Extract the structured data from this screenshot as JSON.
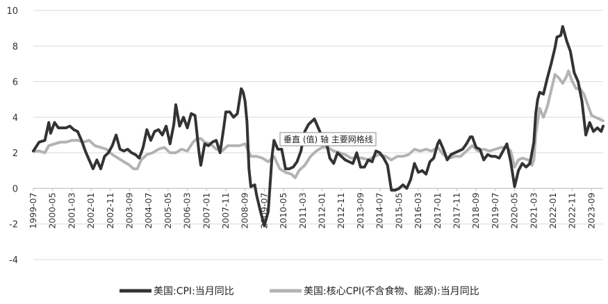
{
  "chart_data": {
    "type": "line",
    "title": "",
    "xlabel": "",
    "ylabel": "",
    "ylim": [
      -4,
      10
    ],
    "yticks": [
      -4,
      -2,
      0,
      2,
      4,
      6,
      8,
      10
    ],
    "grid": "horizontal",
    "legend_position": "bottom",
    "x_tick_labels": [
      "1999-07",
      "2000-05",
      "2001-03",
      "2002-01",
      "2002-11",
      "2003-09",
      "2004-07",
      "2005-05",
      "2006-03",
      "2007-01",
      "2007-11",
      "2008-09",
      "2009-07",
      "2010-05",
      "2011-03",
      "2012-01",
      "2012-11",
      "2013-09",
      "2014-07",
      "2015-05",
      "2016-03",
      "2017-01",
      "2017-11",
      "2018-09",
      "2019-07",
      "2020-05",
      "2021-03",
      "2022-01",
      "2022-11",
      "2023-09"
    ],
    "x_start": "1999-07",
    "x_end": "2024-03",
    "series": [
      {
        "name": "美国:CPI:当月同比",
        "color": "#333333",
        "points": [
          [
            "1999-07",
            2.1
          ],
          [
            "1999-10",
            2.6
          ],
          [
            "2000-01",
            2.7
          ],
          [
            "2000-03",
            3.7
          ],
          [
            "2000-04",
            3.1
          ],
          [
            "2000-06",
            3.7
          ],
          [
            "2000-08",
            3.4
          ],
          [
            "2000-12",
            3.4
          ],
          [
            "2001-02",
            3.5
          ],
          [
            "2001-04",
            3.3
          ],
          [
            "2001-06",
            3.2
          ],
          [
            "2001-08",
            2.7
          ],
          [
            "2001-10",
            2.1
          ],
          [
            "2001-12",
            1.6
          ],
          [
            "2002-02",
            1.1
          ],
          [
            "2002-04",
            1.6
          ],
          [
            "2002-06",
            1.1
          ],
          [
            "2002-08",
            1.8
          ],
          [
            "2002-10",
            2.0
          ],
          [
            "2002-12",
            2.4
          ],
          [
            "2003-02",
            3.0
          ],
          [
            "2003-04",
            2.2
          ],
          [
            "2003-06",
            2.1
          ],
          [
            "2003-08",
            2.2
          ],
          [
            "2003-10",
            2.0
          ],
          [
            "2003-12",
            1.9
          ],
          [
            "2004-02",
            1.7
          ],
          [
            "2004-04",
            2.3
          ],
          [
            "2004-06",
            3.3
          ],
          [
            "2004-08",
            2.7
          ],
          [
            "2004-10",
            3.2
          ],
          [
            "2004-12",
            3.3
          ],
          [
            "2005-02",
            3.0
          ],
          [
            "2005-04",
            3.5
          ],
          [
            "2005-06",
            2.5
          ],
          [
            "2005-08",
            3.6
          ],
          [
            "2005-09",
            4.7
          ],
          [
            "2005-11",
            3.5
          ],
          [
            "2006-01",
            4.0
          ],
          [
            "2006-03",
            3.4
          ],
          [
            "2006-05",
            4.2
          ],
          [
            "2006-07",
            4.1
          ],
          [
            "2006-09",
            2.1
          ],
          [
            "2006-10",
            1.3
          ],
          [
            "2006-12",
            2.5
          ],
          [
            "2007-02",
            2.4
          ],
          [
            "2007-04",
            2.6
          ],
          [
            "2007-06",
            2.7
          ],
          [
            "2007-08",
            2.0
          ],
          [
            "2007-10",
            3.5
          ],
          [
            "2007-11",
            4.3
          ],
          [
            "2008-01",
            4.3
          ],
          [
            "2008-03",
            4.0
          ],
          [
            "2008-05",
            4.2
          ],
          [
            "2008-07",
            5.6
          ],
          [
            "2008-08",
            5.4
          ],
          [
            "2008-09",
            4.9
          ],
          [
            "2008-10",
            3.7
          ],
          [
            "2008-11",
            1.1
          ],
          [
            "2008-12",
            0.1
          ],
          [
            "2009-02",
            0.2
          ],
          [
            "2009-03",
            -0.4
          ],
          [
            "2009-05",
            -1.3
          ],
          [
            "2009-07",
            -2.1
          ],
          [
            "2009-09",
            -1.3
          ],
          [
            "2009-11",
            1.8
          ],
          [
            "2009-12",
            2.7
          ],
          [
            "2010-02",
            2.2
          ],
          [
            "2010-04",
            2.2
          ],
          [
            "2010-06",
            1.1
          ],
          [
            "2010-08",
            1.1
          ],
          [
            "2010-10",
            1.2
          ],
          [
            "2010-12",
            1.5
          ],
          [
            "2011-02",
            2.1
          ],
          [
            "2011-04",
            3.2
          ],
          [
            "2011-06",
            3.6
          ],
          [
            "2011-08",
            3.8
          ],
          [
            "2011-09",
            3.9
          ],
          [
            "2011-11",
            3.4
          ],
          [
            "2012-01",
            2.9
          ],
          [
            "2012-03",
            2.7
          ],
          [
            "2012-05",
            1.7
          ],
          [
            "2012-07",
            1.4
          ],
          [
            "2012-09",
            2.0
          ],
          [
            "2012-11",
            1.8
          ],
          [
            "2013-01",
            1.6
          ],
          [
            "2013-03",
            1.5
          ],
          [
            "2013-05",
            1.4
          ],
          [
            "2013-07",
            2.0
          ],
          [
            "2013-09",
            1.2
          ],
          [
            "2013-11",
            1.2
          ],
          [
            "2014-01",
            1.6
          ],
          [
            "2014-03",
            1.5
          ],
          [
            "2014-05",
            2.1
          ],
          [
            "2014-07",
            2.0
          ],
          [
            "2014-09",
            1.7
          ],
          [
            "2014-11",
            1.3
          ],
          [
            "2015-01",
            -0.1
          ],
          [
            "2015-03",
            -0.1
          ],
          [
            "2015-05",
            0.0
          ],
          [
            "2015-07",
            0.2
          ],
          [
            "2015-09",
            0.0
          ],
          [
            "2015-11",
            0.5
          ],
          [
            "2016-01",
            1.4
          ],
          [
            "2016-03",
            0.9
          ],
          [
            "2016-05",
            1.0
          ],
          [
            "2016-07",
            0.8
          ],
          [
            "2016-09",
            1.5
          ],
          [
            "2016-11",
            1.7
          ],
          [
            "2017-01",
            2.5
          ],
          [
            "2017-02",
            2.7
          ],
          [
            "2017-04",
            2.2
          ],
          [
            "2017-06",
            1.6
          ],
          [
            "2017-08",
            1.9
          ],
          [
            "2017-10",
            2.0
          ],
          [
            "2017-12",
            2.1
          ],
          [
            "2018-02",
            2.2
          ],
          [
            "2018-04",
            2.5
          ],
          [
            "2018-06",
            2.9
          ],
          [
            "2018-07",
            2.9
          ],
          [
            "2018-09",
            2.3
          ],
          [
            "2018-11",
            2.2
          ],
          [
            "2019-01",
            1.6
          ],
          [
            "2019-03",
            1.9
          ],
          [
            "2019-05",
            1.8
          ],
          [
            "2019-07",
            1.8
          ],
          [
            "2019-09",
            1.7
          ],
          [
            "2019-11",
            2.1
          ],
          [
            "2020-01",
            2.5
          ],
          [
            "2020-03",
            1.5
          ],
          [
            "2020-05",
            0.1
          ],
          [
            "2020-07",
            1.0
          ],
          [
            "2020-09",
            1.4
          ],
          [
            "2020-11",
            1.2
          ],
          [
            "2021-01",
            1.4
          ],
          [
            "2021-03",
            2.6
          ],
          [
            "2021-04",
            4.2
          ],
          [
            "2021-05",
            5.0
          ],
          [
            "2021-06",
            5.4
          ],
          [
            "2021-08",
            5.3
          ],
          [
            "2021-10",
            6.2
          ],
          [
            "2021-12",
            7.0
          ],
          [
            "2022-02",
            7.9
          ],
          [
            "2022-03",
            8.5
          ],
          [
            "2022-05",
            8.6
          ],
          [
            "2022-06",
            9.1
          ],
          [
            "2022-08",
            8.3
          ],
          [
            "2022-10",
            7.7
          ],
          [
            "2022-12",
            6.5
          ],
          [
            "2023-02",
            6.0
          ],
          [
            "2023-04",
            4.9
          ],
          [
            "2023-06",
            3.0
          ],
          [
            "2023-08",
            3.7
          ],
          [
            "2023-10",
            3.2
          ],
          [
            "2023-12",
            3.4
          ],
          [
            "2024-02",
            3.2
          ],
          [
            "2024-03",
            3.5
          ]
        ]
      },
      {
        "name": "美国:核心CPI(不含食物、能源):当月同比",
        "color": "#b3b3b3",
        "points": [
          [
            "1999-07",
            2.1
          ],
          [
            "1999-10",
            2.1
          ],
          [
            "2000-01",
            2.0
          ],
          [
            "2000-03",
            2.4
          ],
          [
            "2000-06",
            2.5
          ],
          [
            "2000-09",
            2.6
          ],
          [
            "2000-12",
            2.6
          ],
          [
            "2001-03",
            2.7
          ],
          [
            "2001-06",
            2.7
          ],
          [
            "2001-09",
            2.6
          ],
          [
            "2001-12",
            2.7
          ],
          [
            "2002-03",
            2.4
          ],
          [
            "2002-06",
            2.3
          ],
          [
            "2002-09",
            2.2
          ],
          [
            "2002-12",
            1.9
          ],
          [
            "2003-03",
            1.7
          ],
          [
            "2003-06",
            1.5
          ],
          [
            "2003-09",
            1.3
          ],
          [
            "2003-11",
            1.1
          ],
          [
            "2004-01",
            1.1
          ],
          [
            "2004-03",
            1.6
          ],
          [
            "2004-06",
            1.9
          ],
          [
            "2004-09",
            2.0
          ],
          [
            "2004-12",
            2.2
          ],
          [
            "2005-03",
            2.3
          ],
          [
            "2005-06",
            2.0
          ],
          [
            "2005-09",
            2.0
          ],
          [
            "2005-12",
            2.2
          ],
          [
            "2006-03",
            2.1
          ],
          [
            "2006-06",
            2.6
          ],
          [
            "2006-08",
            2.8
          ],
          [
            "2006-10",
            2.8
          ],
          [
            "2006-12",
            2.6
          ],
          [
            "2007-03",
            2.5
          ],
          [
            "2007-06",
            2.2
          ],
          [
            "2007-09",
            2.1
          ],
          [
            "2007-12",
            2.4
          ],
          [
            "2008-03",
            2.4
          ],
          [
            "2008-06",
            2.4
          ],
          [
            "2008-09",
            2.5
          ],
          [
            "2008-12",
            1.8
          ],
          [
            "2009-03",
            1.8
          ],
          [
            "2009-06",
            1.7
          ],
          [
            "2009-09",
            1.5
          ],
          [
            "2009-12",
            1.8
          ],
          [
            "2010-03",
            1.1
          ],
          [
            "2010-06",
            0.9
          ],
          [
            "2010-09",
            0.8
          ],
          [
            "2010-11",
            0.6
          ],
          [
            "2011-01",
            1.0
          ],
          [
            "2011-04",
            1.3
          ],
          [
            "2011-07",
            1.8
          ],
          [
            "2011-10",
            2.1
          ],
          [
            "2012-01",
            2.3
          ],
          [
            "2012-04",
            2.3
          ],
          [
            "2012-07",
            2.1
          ],
          [
            "2012-10",
            2.0
          ],
          [
            "2013-01",
            1.9
          ],
          [
            "2013-04",
            1.7
          ],
          [
            "2013-07",
            1.7
          ],
          [
            "2013-10",
            1.7
          ],
          [
            "2014-01",
            1.6
          ],
          [
            "2014-04",
            1.8
          ],
          [
            "2014-07",
            1.9
          ],
          [
            "2014-10",
            1.8
          ],
          [
            "2015-01",
            1.6
          ],
          [
            "2015-04",
            1.8
          ],
          [
            "2015-07",
            1.8
          ],
          [
            "2015-10",
            1.9
          ],
          [
            "2016-01",
            2.2
          ],
          [
            "2016-04",
            2.1
          ],
          [
            "2016-07",
            2.2
          ],
          [
            "2016-10",
            2.1
          ],
          [
            "2017-01",
            2.3
          ],
          [
            "2017-04",
            1.9
          ],
          [
            "2017-07",
            1.7
          ],
          [
            "2017-10",
            1.8
          ],
          [
            "2018-01",
            1.8
          ],
          [
            "2018-04",
            2.1
          ],
          [
            "2018-07",
            2.4
          ],
          [
            "2018-10",
            2.1
          ],
          [
            "2019-01",
            2.2
          ],
          [
            "2019-04",
            2.1
          ],
          [
            "2019-07",
            2.2
          ],
          [
            "2019-10",
            2.3
          ],
          [
            "2020-01",
            2.3
          ],
          [
            "2020-03",
            2.1
          ],
          [
            "2020-05",
            1.2
          ],
          [
            "2020-07",
            1.6
          ],
          [
            "2020-09",
            1.7
          ],
          [
            "2020-12",
            1.6
          ],
          [
            "2021-02",
            1.3
          ],
          [
            "2021-03",
            1.6
          ],
          [
            "2021-04",
            3.0
          ],
          [
            "2021-06",
            4.5
          ],
          [
            "2021-08",
            4.0
          ],
          [
            "2021-10",
            4.6
          ],
          [
            "2021-12",
            5.5
          ],
          [
            "2022-02",
            6.4
          ],
          [
            "2022-04",
            6.2
          ],
          [
            "2022-06",
            5.9
          ],
          [
            "2022-08",
            6.3
          ],
          [
            "2022-09",
            6.6
          ],
          [
            "2022-11",
            6.0
          ],
          [
            "2023-01",
            5.6
          ],
          [
            "2023-03",
            5.6
          ],
          [
            "2023-05",
            5.3
          ],
          [
            "2023-07",
            4.7
          ],
          [
            "2023-09",
            4.1
          ],
          [
            "2023-11",
            4.0
          ],
          [
            "2024-01",
            3.9
          ],
          [
            "2024-03",
            3.8
          ]
        ]
      }
    ]
  },
  "tooltip": {
    "text": "垂直 (值) 轴 主要网格线"
  }
}
